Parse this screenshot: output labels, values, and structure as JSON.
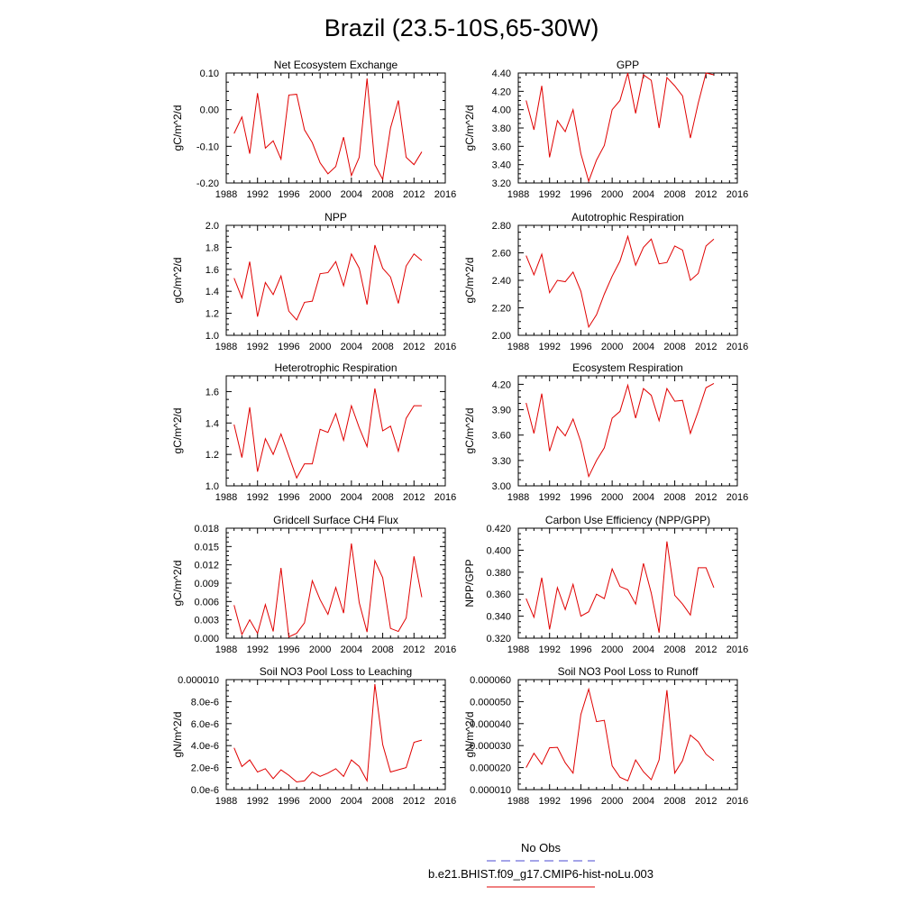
{
  "page": {
    "title": "Brazil (23.5-10S,65-30W)"
  },
  "legend": {
    "entries": [
      {
        "label": "No Obs",
        "color": "#4a4ad0",
        "style": "dashed"
      },
      {
        "label": "b.e21.BHIST.f09_g17.CMIP6-hist-noLu.003",
        "color": "#e00000",
        "style": "solid"
      }
    ]
  },
  "chart_data": [
    {
      "type": "line",
      "title": "Net Ecosystem Exchange",
      "ylabel": "gC/m^2/d",
      "xlim": [
        1988,
        2016
      ],
      "ylim": [
        -0.2,
        0.1
      ],
      "x_ticks": [
        "1988",
        "1992",
        "1996",
        "2000",
        "2004",
        "2008",
        "2012",
        "2016"
      ],
      "y_ticks": [
        "-0.20",
        "-0.10",
        "0.00",
        "0.10"
      ],
      "x": [
        1989,
        1990,
        1991,
        1992,
        1993,
        1994,
        1995,
        1996,
        1997,
        1998,
        1999,
        2000,
        2001,
        2002,
        2003,
        2004,
        2005,
        2006,
        2007,
        2008,
        2009,
        2010,
        2011,
        2012,
        2013
      ],
      "series": [
        {
          "color": "#e00000",
          "values": [
            -0.065,
            -0.02,
            -0.12,
            0.045,
            -0.105,
            -0.085,
            -0.135,
            0.04,
            0.042,
            -0.055,
            -0.09,
            -0.145,
            -0.175,
            -0.155,
            -0.075,
            -0.18,
            -0.13,
            0.085,
            -0.15,
            -0.19,
            -0.05,
            0.025,
            -0.13,
            -0.15,
            -0.115
          ]
        }
      ]
    },
    {
      "type": "line",
      "title": "GPP",
      "ylabel": "gC/m^2/d",
      "xlim": [
        1988,
        2016
      ],
      "ylim": [
        3.2,
        4.4
      ],
      "x_ticks": [
        "1988",
        "1992",
        "1996",
        "2000",
        "2004",
        "2008",
        "2012",
        "2016"
      ],
      "y_ticks": [
        "3.20",
        "3.40",
        "3.60",
        "3.80",
        "4.00",
        "4.20",
        "4.40"
      ],
      "x": [
        1989,
        1990,
        1991,
        1992,
        1993,
        1994,
        1995,
        1996,
        1997,
        1998,
        1999,
        2000,
        2001,
        2002,
        2003,
        2004,
        2005,
        2006,
        2007,
        2008,
        2009,
        2010,
        2011,
        2012,
        2013
      ],
      "series": [
        {
          "color": "#e00000",
          "values": [
            4.1,
            3.78,
            4.26,
            3.48,
            3.88,
            3.76,
            4.0,
            3.52,
            3.22,
            3.45,
            3.61,
            4.0,
            4.1,
            4.4,
            3.96,
            4.38,
            4.32,
            3.8,
            4.35,
            4.26,
            4.15,
            3.69,
            4.07,
            4.4,
            4.38
          ]
        }
      ]
    },
    {
      "type": "line",
      "title": "NPP",
      "ylabel": "gC/m^2/d",
      "xlim": [
        1988,
        2016
      ],
      "ylim": [
        1.0,
        2.0
      ],
      "x_ticks": [
        "1988",
        "1992",
        "1996",
        "2000",
        "2004",
        "2008",
        "2012",
        "2016"
      ],
      "y_ticks": [
        "1.0",
        "1.2",
        "1.4",
        "1.6",
        "1.8",
        "2.0"
      ],
      "x": [
        1989,
        1990,
        1991,
        1992,
        1993,
        1994,
        1995,
        1996,
        1997,
        1998,
        1999,
        2000,
        2001,
        2002,
        2003,
        2004,
        2005,
        2006,
        2007,
        2008,
        2009,
        2010,
        2011,
        2012,
        2013
      ],
      "series": [
        {
          "color": "#e00000",
          "values": [
            1.52,
            1.34,
            1.67,
            1.17,
            1.48,
            1.37,
            1.54,
            1.22,
            1.14,
            1.3,
            1.31,
            1.56,
            1.57,
            1.67,
            1.45,
            1.74,
            1.61,
            1.28,
            1.82,
            1.61,
            1.53,
            1.29,
            1.63,
            1.74,
            1.68
          ]
        }
      ]
    },
    {
      "type": "line",
      "title": "Autotrophic Respiration",
      "ylabel": "gC/m^2/d",
      "xlim": [
        1988,
        2016
      ],
      "ylim": [
        2.0,
        2.8
      ],
      "x_ticks": [
        "1988",
        "1992",
        "1996",
        "2000",
        "2004",
        "2008",
        "2012",
        "2016"
      ],
      "y_ticks": [
        "2.00",
        "2.20",
        "2.40",
        "2.60",
        "2.80"
      ],
      "x": [
        1989,
        1990,
        1991,
        1992,
        1993,
        1994,
        1995,
        1996,
        1997,
        1998,
        1999,
        2000,
        2001,
        2002,
        2003,
        2004,
        2005,
        2006,
        2007,
        2008,
        2009,
        2010,
        2011,
        2012,
        2013
      ],
      "series": [
        {
          "color": "#e00000",
          "values": [
            2.58,
            2.44,
            2.59,
            2.31,
            2.4,
            2.39,
            2.46,
            2.32,
            2.06,
            2.15,
            2.3,
            2.43,
            2.54,
            2.72,
            2.51,
            2.64,
            2.7,
            2.52,
            2.53,
            2.65,
            2.62,
            2.4,
            2.45,
            2.65,
            2.7
          ]
        }
      ]
    },
    {
      "type": "line",
      "title": "Heterotrophic Respiration",
      "ylabel": "gC/m^2/d",
      "xlim": [
        1988,
        2016
      ],
      "ylim": [
        1.0,
        1.7
      ],
      "x_ticks": [
        "1988",
        "1992",
        "1996",
        "2000",
        "2004",
        "2008",
        "2012",
        "2016"
      ],
      "y_ticks": [
        "1.0",
        "1.2",
        "1.4",
        "1.6"
      ],
      "x": [
        1989,
        1990,
        1991,
        1992,
        1993,
        1994,
        1995,
        1996,
        1997,
        1998,
        1999,
        2000,
        2001,
        2002,
        2003,
        2004,
        2005,
        2006,
        2007,
        2008,
        2009,
        2010,
        2011,
        2012,
        2013
      ],
      "series": [
        {
          "color": "#e00000",
          "values": [
            1.39,
            1.18,
            1.5,
            1.09,
            1.3,
            1.2,
            1.33,
            1.19,
            1.05,
            1.14,
            1.14,
            1.36,
            1.34,
            1.46,
            1.29,
            1.51,
            1.37,
            1.25,
            1.62,
            1.35,
            1.38,
            1.22,
            1.43,
            1.51,
            1.51
          ]
        }
      ]
    },
    {
      "type": "line",
      "title": "Ecosystem Respiration",
      "ylabel": "gC/m^2/d",
      "xlim": [
        1988,
        2016
      ],
      "ylim": [
        3.0,
        4.3
      ],
      "x_ticks": [
        "1988",
        "1992",
        "1996",
        "2000",
        "2004",
        "2008",
        "2012",
        "2016"
      ],
      "y_ticks": [
        "3.00",
        "3.30",
        "3.60",
        "3.90",
        "4.20"
      ],
      "x": [
        1989,
        1990,
        1991,
        1992,
        1993,
        1994,
        1995,
        1996,
        1997,
        1998,
        1999,
        2000,
        2001,
        2002,
        2003,
        2004,
        2005,
        2006,
        2007,
        2008,
        2009,
        2010,
        2011,
        2012,
        2013
      ],
      "series": [
        {
          "color": "#e00000",
          "values": [
            3.98,
            3.62,
            4.09,
            3.41,
            3.7,
            3.59,
            3.79,
            3.52,
            3.11,
            3.3,
            3.45,
            3.8,
            3.88,
            4.19,
            3.8,
            4.15,
            4.07,
            3.77,
            4.15,
            4.0,
            4.01,
            3.62,
            3.88,
            4.16,
            4.21
          ]
        }
      ]
    },
    {
      "type": "line",
      "title": "Gridcell Surface CH4 Flux",
      "ylabel": "gC/m^2/d",
      "xlim": [
        1988,
        2016
      ],
      "ylim": [
        0.0,
        0.018
      ],
      "x_ticks": [
        "1988",
        "1992",
        "1996",
        "2000",
        "2004",
        "2008",
        "2012",
        "2016"
      ],
      "y_ticks": [
        "0.000",
        "0.003",
        "0.006",
        "0.009",
        "0.012",
        "0.015",
        "0.018"
      ],
      "x": [
        1989,
        1990,
        1991,
        1992,
        1993,
        1994,
        1995,
        1996,
        1997,
        1998,
        1999,
        2000,
        2001,
        2002,
        2003,
        2004,
        2005,
        2006,
        2007,
        2008,
        2009,
        2010,
        2011,
        2012,
        2013
      ],
      "series": [
        {
          "color": "#e00000",
          "values": [
            0.0054,
            0.0006,
            0.003,
            0.0008,
            0.0055,
            0.0011,
            0.0115,
            0.0002,
            0.0008,
            0.0025,
            0.0094,
            0.0063,
            0.0039,
            0.0083,
            0.0041,
            0.0155,
            0.0058,
            0.001,
            0.0127,
            0.0099,
            0.0016,
            0.0011,
            0.0033,
            0.0134,
            0.0067
          ]
        }
      ]
    },
    {
      "type": "line",
      "title": "Carbon Use Efficiency (NPP/GPP)",
      "ylabel": "NPP/GPP",
      "xlim": [
        1988,
        2016
      ],
      "ylim": [
        0.32,
        0.42
      ],
      "x_ticks": [
        "1988",
        "1992",
        "1996",
        "2000",
        "2004",
        "2008",
        "2012",
        "2016"
      ],
      "y_ticks": [
        "0.320",
        "0.340",
        "0.360",
        "0.380",
        "0.400",
        "0.420"
      ],
      "x": [
        1989,
        1990,
        1991,
        1992,
        1993,
        1994,
        1995,
        1996,
        1997,
        1998,
        1999,
        2000,
        2001,
        2002,
        2003,
        2004,
        2005,
        2006,
        2007,
        2008,
        2009,
        2010,
        2011,
        2012,
        2013
      ],
      "series": [
        {
          "color": "#e00000",
          "values": [
            0.356,
            0.339,
            0.375,
            0.328,
            0.366,
            0.346,
            0.369,
            0.34,
            0.344,
            0.36,
            0.356,
            0.383,
            0.367,
            0.364,
            0.351,
            0.388,
            0.361,
            0.325,
            0.408,
            0.359,
            0.351,
            0.341,
            0.384,
            0.384,
            0.366
          ]
        }
      ]
    },
    {
      "type": "line",
      "title": "Soil NO3 Pool Loss to Leaching",
      "ylabel": "gN/m^2/d",
      "xlim": [
        1988,
        2016
      ],
      "ylim": [
        0.0,
        1e-05
      ],
      "x_ticks": [
        "1988",
        "1992",
        "1996",
        "2000",
        "2004",
        "2008",
        "2012",
        "2016"
      ],
      "y_ticks": [
        "0.0e-6",
        "2.0e-6",
        "4.0e-6",
        "6.0e-6",
        "8.0e-6",
        "0.000010"
      ],
      "x": [
        1989,
        1990,
        1991,
        1992,
        1993,
        1994,
        1995,
        1996,
        1997,
        1998,
        1999,
        2000,
        2001,
        2002,
        2003,
        2004,
        2005,
        2006,
        2007,
        2008,
        2009,
        2010,
        2011,
        2012,
        2013
      ],
      "series": [
        {
          "color": "#e00000",
          "values": [
            3.8e-06,
            2.1e-06,
            2.7e-06,
            1.6e-06,
            1.9e-06,
            1e-06,
            1.8e-06,
            1.3e-06,
            7e-07,
            8e-07,
            1.6e-06,
            1.2e-06,
            1.5e-06,
            1.9e-06,
            1.2e-06,
            2.7e-06,
            2.1e-06,
            8e-07,
            9.6e-06,
            4.1e-06,
            1.6e-06,
            1.8e-06,
            2e-06,
            4.3e-06,
            4.5e-06
          ]
        }
      ]
    },
    {
      "type": "line",
      "title": "Soil NO3 Pool Loss to Runoff",
      "ylabel": "gN/m^2/d",
      "xlim": [
        1988,
        2016
      ],
      "ylim": [
        1e-05,
        6e-05
      ],
      "x_ticks": [
        "1988",
        "1992",
        "1996",
        "2000",
        "2004",
        "2008",
        "2012",
        "2016"
      ],
      "y_ticks": [
        "0.000010",
        "0.000020",
        "0.000030",
        "0.000040",
        "0.000050",
        "0.000060"
      ],
      "x": [
        1989,
        1990,
        1991,
        1992,
        1993,
        1994,
        1995,
        1996,
        1997,
        1998,
        1999,
        2000,
        2001,
        2002,
        2003,
        2004,
        2005,
        2006,
        2007,
        2008,
        2009,
        2010,
        2011,
        2012,
        2013
      ],
      "series": [
        {
          "color": "#e00000",
          "values": [
            2e-05,
            2.65e-05,
            2.15e-05,
            2.9e-05,
            2.92e-05,
            2.22e-05,
            1.75e-05,
            4.42e-05,
            5.57e-05,
            4.09e-05,
            4.15e-05,
            2.08e-05,
            1.56e-05,
            1.4e-05,
            2.35e-05,
            1.81e-05,
            1.45e-05,
            2.35e-05,
            5.52e-05,
            1.75e-05,
            2.32e-05,
            3.48e-05,
            3.18e-05,
            2.61e-05,
            2.32e-05
          ]
        }
      ]
    }
  ]
}
